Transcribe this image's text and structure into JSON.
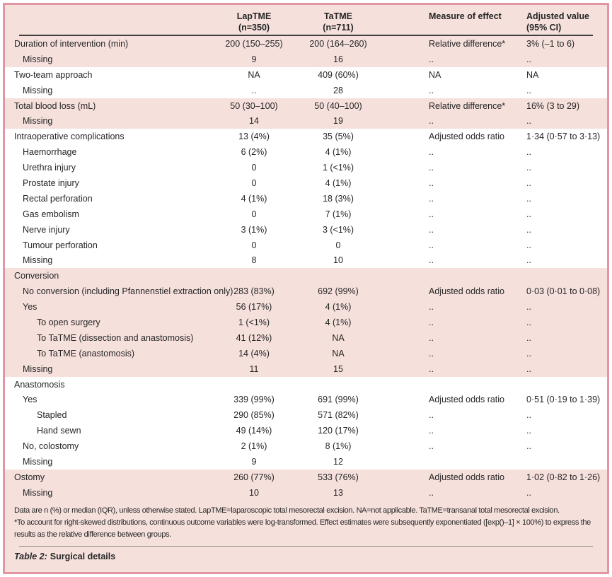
{
  "colors": {
    "table_background": "#f5e0dc",
    "band_white": "#ffffff",
    "frame_border": "#e097a3",
    "header_rule": "#404040",
    "text": "#262626"
  },
  "table": {
    "header": {
      "laptme": {
        "line1": "LapTME",
        "line2": "(n=350)"
      },
      "tatme": {
        "line1": "TaTME",
        "line2": "(n=711)"
      },
      "measure": "Measure of effect",
      "adjusted": {
        "line1": "Adjusted value",
        "line2": "(95% CI)"
      }
    },
    "rows": [
      {
        "label": "Duration of intervention (min)",
        "indent": 0,
        "band": "pink",
        "laptme": "200 (150–255)",
        "tatme": "200 (164–260)",
        "measure": "Relative difference*",
        "adjusted": "3% (–1 to 6)"
      },
      {
        "label": "Missing",
        "indent": 1,
        "band": "pink",
        "laptme": "9",
        "tatme": "16",
        "measure": "..",
        "adjusted": ".."
      },
      {
        "label": "Two-team approach",
        "indent": 0,
        "band": "white",
        "laptme": "NA",
        "tatme": "409 (60%)",
        "measure": "NA",
        "adjusted": "NA"
      },
      {
        "label": "Missing",
        "indent": 1,
        "band": "white",
        "laptme": "..",
        "tatme": "28",
        "measure": "..",
        "adjusted": ".."
      },
      {
        "label": "Total blood loss (mL)",
        "indent": 0,
        "band": "pink",
        "laptme": "50 (30–100)",
        "tatme": "50 (40–100)",
        "measure": "Relative difference*",
        "adjusted": "16% (3 to 29)"
      },
      {
        "label": "Missing",
        "indent": 1,
        "band": "pink",
        "laptme": "14",
        "tatme": "19",
        "measure": "..",
        "adjusted": ".."
      },
      {
        "label": "Intraoperative complications",
        "indent": 0,
        "band": "white",
        "laptme": "13 (4%)",
        "tatme": "35 (5%)",
        "measure": "Adjusted odds ratio",
        "adjusted": "1·34 (0·57 to 3·13)"
      },
      {
        "label": "Haemorrhage",
        "indent": 1,
        "band": "white",
        "laptme": "6 (2%)",
        "tatme": "4 (1%)",
        "measure": "..",
        "adjusted": ".."
      },
      {
        "label": "Urethra injury",
        "indent": 1,
        "band": "white",
        "laptme": "0",
        "tatme": "1 (<1%)",
        "measure": "..",
        "adjusted": ".."
      },
      {
        "label": "Prostate injury",
        "indent": 1,
        "band": "white",
        "laptme": "0",
        "tatme": "4 (1%)",
        "measure": "..",
        "adjusted": ".."
      },
      {
        "label": "Rectal perforation",
        "indent": 1,
        "band": "white",
        "laptme": "4 (1%)",
        "tatme": "18 (3%)",
        "measure": "..",
        "adjusted": ".."
      },
      {
        "label": "Gas embolism",
        "indent": 1,
        "band": "white",
        "laptme": "0",
        "tatme": "7 (1%)",
        "measure": "..",
        "adjusted": ".."
      },
      {
        "label": "Nerve injury",
        "indent": 1,
        "band": "white",
        "laptme": "3 (1%)",
        "tatme": "3 (<1%)",
        "measure": "..",
        "adjusted": ".."
      },
      {
        "label": "Tumour perforation",
        "indent": 1,
        "band": "white",
        "laptme": "0",
        "tatme": "0",
        "measure": "..",
        "adjusted": ".."
      },
      {
        "label": "Missing",
        "indent": 1,
        "band": "white",
        "laptme": "8",
        "tatme": "10",
        "measure": "..",
        "adjusted": ".."
      },
      {
        "label": "Conversion",
        "indent": 0,
        "band": "pink",
        "laptme": "",
        "tatme": "",
        "measure": "",
        "adjusted": ""
      },
      {
        "label": "No conversion (including Pfannenstiel extraction only)",
        "indent": 1,
        "band": "pink",
        "laptme": "283 (83%)",
        "tatme": "692 (99%)",
        "measure": "Adjusted odds ratio",
        "adjusted": "0·03 (0·01 to 0·08)"
      },
      {
        "label": "Yes",
        "indent": 1,
        "band": "pink",
        "laptme": "56 (17%)",
        "tatme": "4 (1%)",
        "measure": "..",
        "adjusted": ".."
      },
      {
        "label": "To open surgery",
        "indent": 2,
        "band": "pink",
        "laptme": "1 (<1%)",
        "tatme": "4 (1%)",
        "measure": "..",
        "adjusted": ".."
      },
      {
        "label": "To TaTME (dissection and anastomosis)",
        "indent": 2,
        "band": "pink",
        "laptme": "41 (12%)",
        "tatme": "NA",
        "measure": "..",
        "adjusted": ".."
      },
      {
        "label": "To TaTME (anastomosis)",
        "indent": 2,
        "band": "pink",
        "laptme": "14 (4%)",
        "tatme": "NA",
        "measure": "..",
        "adjusted": ".."
      },
      {
        "label": "Missing",
        "indent": 1,
        "band": "pink",
        "laptme": "11",
        "tatme": "15",
        "measure": "..",
        "adjusted": ".."
      },
      {
        "label": "Anastomosis",
        "indent": 0,
        "band": "white",
        "laptme": "",
        "tatme": "",
        "measure": "",
        "adjusted": ""
      },
      {
        "label": "Yes",
        "indent": 1,
        "band": "white",
        "laptme": "339 (99%)",
        "tatme": "691 (99%)",
        "measure": "Adjusted odds ratio",
        "adjusted": "0·51 (0·19 to 1·39)"
      },
      {
        "label": "Stapled",
        "indent": 2,
        "band": "white",
        "laptme": "290 (85%)",
        "tatme": "571 (82%)",
        "measure": "..",
        "adjusted": ".."
      },
      {
        "label": "Hand sewn",
        "indent": 2,
        "band": "white",
        "laptme": "49 (14%)",
        "tatme": "120 (17%)",
        "measure": "..",
        "adjusted": ".."
      },
      {
        "label": "No, colostomy",
        "indent": 1,
        "band": "white",
        "laptme": "2 (1%)",
        "tatme": "8 (1%)",
        "measure": "..",
        "adjusted": ".."
      },
      {
        "label": "Missing",
        "indent": 1,
        "band": "white",
        "laptme": "9",
        "tatme": "12",
        "measure": "",
        "adjusted": ""
      },
      {
        "label": "Ostomy",
        "indent": 0,
        "band": "pink",
        "laptme": "260 (77%)",
        "tatme": "533 (76%)",
        "measure": "Adjusted odds ratio",
        "adjusted": "1·02 (0·82 to 1·26)"
      },
      {
        "label": "Missing",
        "indent": 1,
        "band": "pink",
        "laptme": "10",
        "tatme": "13",
        "measure": "..",
        "adjusted": ".."
      }
    ],
    "footnotes": [
      "Data are n (%) or median (IQR), unless otherwise stated. LapTME=laparoscopic total mesorectal excision. NA=not applicable. TaTME=transanal total mesorectal excision.",
      "*To account for right-skewed distributions, continuous outcome variables were log-transformed. Effect estimates were subsequently exponentiated ([exp()–1] × 100%) to express the results as the relative difference between groups."
    ],
    "caption": {
      "prefix": "Table 2:",
      "title": "Surgical details"
    }
  }
}
